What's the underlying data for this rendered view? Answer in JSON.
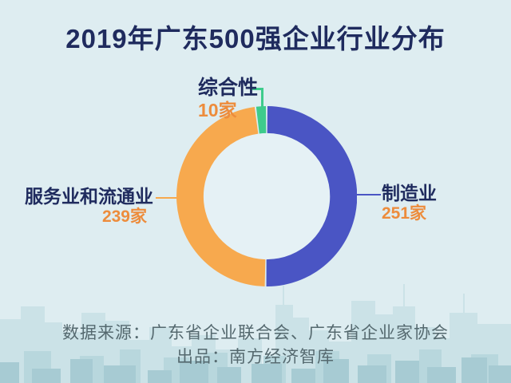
{
  "title": "2019年广东500强企业行业分布",
  "chart_data": {
    "type": "pie",
    "subtype": "donut",
    "title": "2019年广东500强企业行业分布",
    "unit": "家",
    "direction": "clockwise",
    "start_angle_deg": 0,
    "inner_radius_ratio": 0.7,
    "legend_position": "callouts",
    "series": [
      {
        "label": "制造业",
        "value": 251,
        "value_label": "251家",
        "color": "#4A55C4"
      },
      {
        "label": "服务业和流通业",
        "value": 239,
        "value_label": "239家",
        "color": "#F7A94E"
      },
      {
        "label": "综合性",
        "value": 10,
        "value_label": "10家",
        "color": "#3ECB8C"
      }
    ]
  },
  "footer": {
    "source_line": "数据来源：广东省企业联合会、广东省企业家协会",
    "producer_line": "出品：南方经济智库"
  },
  "colors": {
    "background": "#DEEDF1",
    "donut_hole": "#E5F1F5",
    "title_text": "#1F2B5E",
    "value_text": "#ED8C3C",
    "footer_text": "#55696F",
    "skyline_back": "#CBE2E7",
    "skyline_mid": "#B8D7DD",
    "skyline_front": "#A7CBD3"
  }
}
